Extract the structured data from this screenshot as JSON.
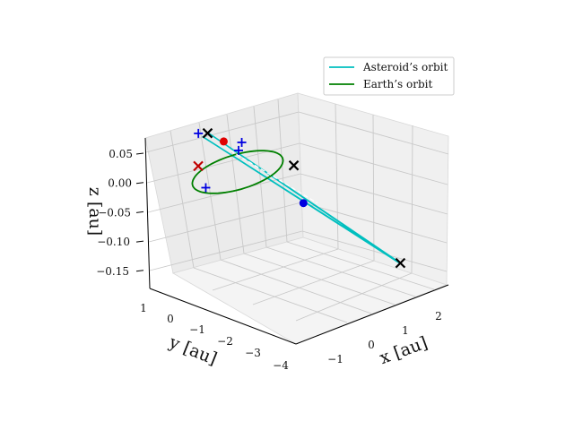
{
  "chart_data": {
    "type": "scatter3d",
    "title": "",
    "axes": {
      "x": {
        "label": "x [au]",
        "range": [
          -1.7,
          2.7
        ],
        "ticks": [
          -1,
          0,
          1,
          2
        ],
        "tick_labels": [
          "−1",
          "0",
          "1",
          "2"
        ]
      },
      "y": {
        "label": "y [au]",
        "range": [
          -4.2,
          1.3
        ],
        "ticks": [
          1,
          0,
          -1,
          -2,
          -3,
          -4
        ],
        "tick_labels": [
          "1",
          "0",
          "−1",
          "−2",
          "−3",
          "−4"
        ]
      },
      "z": {
        "label": "z [au]",
        "range": [
          -0.175,
          0.075
        ],
        "ticks": [
          0.05,
          0.0,
          -0.05,
          -0.1,
          -0.15
        ],
        "tick_labels": [
          "0.05",
          "0.00",
          "−0.05",
          "−0.10",
          "−0.15"
        ]
      }
    },
    "grid": true,
    "legend": {
      "placement": "top-right",
      "entries": [
        {
          "label": "Asteroid’s orbit",
          "color": "#00bfbf"
        },
        {
          "label": "Earth’s orbit",
          "color": "#008000"
        }
      ]
    },
    "series": [
      {
        "name": "Asteroid’s orbit",
        "kind": "line",
        "color": "#00bfbf",
        "points": [
          [
            -0.3,
            0.9,
            0.06
          ],
          [
            2.3,
            -3.6,
            -0.16
          ],
          [
            -0.4,
            1.0,
            0.055
          ],
          [
            2.35,
            -3.5,
            -0.165
          ],
          [
            -0.3,
            0.9,
            0.06
          ]
        ]
      },
      {
        "name": "Earth’s orbit",
        "kind": "ellipse",
        "color": "#008000",
        "center": [
          0.0,
          0.0,
          0.0
        ],
        "radius": 1.0
      },
      {
        "kind": "dashed",
        "color": "#ffffff",
        "points": [
          [
            0.0,
            0.4,
            0.03
          ],
          [
            1.2,
            -1.6,
            -0.06
          ]
        ]
      }
    ],
    "markers": [
      {
        "symbol": "circle",
        "color": "#e00000",
        "xyz": [
          0.05,
          0.85,
          0.035
        ]
      },
      {
        "symbol": "circle",
        "color": "#0000e0",
        "xyz": [
          1.0,
          -1.3,
          -0.06
        ]
      },
      {
        "symbol": "x",
        "color": "#000000",
        "xyz": [
          -0.25,
          1.05,
          0.055
        ]
      },
      {
        "symbol": "x",
        "color": "#000000",
        "xyz": [
          0.95,
          -0.9,
          0.0
        ]
      },
      {
        "symbol": "x",
        "color": "#000000",
        "xyz": [
          2.3,
          -3.6,
          -0.16
        ]
      },
      {
        "symbol": "x",
        "color": "#c00000",
        "xyz": [
          -0.75,
          0.45,
          0.025
        ]
      },
      {
        "symbol": "plus",
        "color": "#0000e0",
        "xyz": [
          -0.45,
          1.1,
          0.06
        ]
      },
      {
        "symbol": "plus",
        "color": "#0000e0",
        "xyz": [
          0.35,
          0.55,
          0.03
        ]
      },
      {
        "symbol": "plus",
        "color": "#0000e0",
        "xyz": [
          0.25,
          0.5,
          0.02
        ]
      },
      {
        "symbol": "plus",
        "color": "#0000e0",
        "xyz": [
          -0.75,
          0.05,
          -0.005
        ]
      }
    ]
  }
}
